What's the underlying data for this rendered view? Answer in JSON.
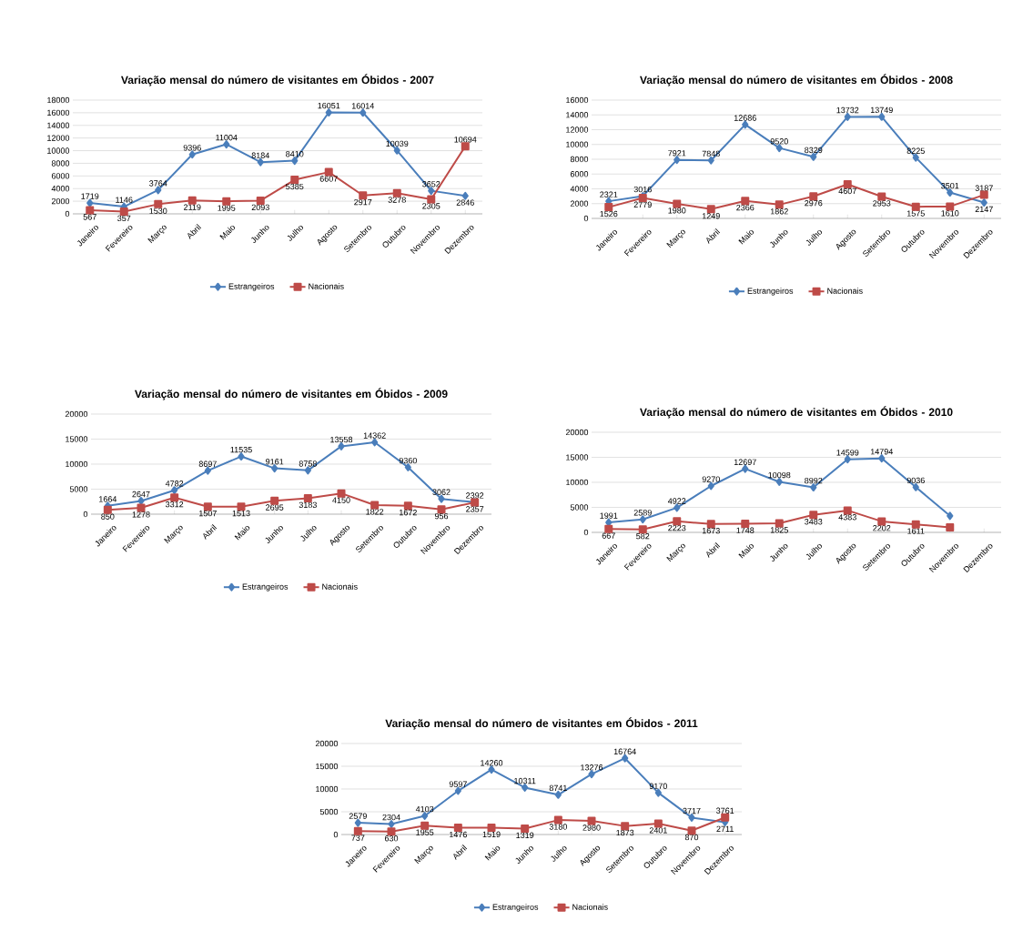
{
  "chart_data": [
    {
      "type": "line",
      "title": "Variação mensal do número de visitantes em Óbidos - 2007",
      "categories": [
        "Janeiro",
        "Fevereiro",
        "Março",
        "Abril",
        "Maio",
        "Junho",
        "Julho",
        "Agosto",
        "Setembro",
        "Outubro",
        "Novembro",
        "Dezembro"
      ],
      "series": [
        {
          "name": "Estrangeiros",
          "color": "#4a7ebb",
          "marker": "diamond",
          "values": [
            1719,
            1146,
            3764,
            9396,
            11004,
            8184,
            8410,
            16051,
            16014,
            10039,
            3652,
            2846
          ]
        },
        {
          "name": "Nacionais",
          "color": "#be4b48",
          "marker": "square",
          "values": [
            567,
            357,
            1530,
            2119,
            1995,
            2093,
            5385,
            6607,
            2917,
            3278,
            2305,
            10694
          ]
        }
      ],
      "ylim": [
        0,
        18000
      ],
      "yticks": [
        0,
        2000,
        4000,
        6000,
        8000,
        10000,
        12000,
        14000,
        16000,
        18000
      ],
      "grid": "y",
      "legend": "bottom",
      "data_labels": true
    },
    {
      "type": "line",
      "title": "Variação mensal do número de visitantes em Óbidos - 2008",
      "categories": [
        "Janeiro",
        "Fevereiro",
        "Março",
        "Abril",
        "Maio",
        "Junho",
        "Julho",
        "Agosto",
        "Setembro",
        "Outubro",
        "Novembro",
        "Dezembro"
      ],
      "series": [
        {
          "name": "Estrangeiros",
          "color": "#4a7ebb",
          "marker": "diamond",
          "values": [
            2321,
            3016,
            7921,
            7848,
            12686,
            9520,
            8329,
            13732,
            13749,
            8225,
            3501,
            2147
          ]
        },
        {
          "name": "Nacionais",
          "color": "#be4b48",
          "marker": "square",
          "values": [
            1526,
            2779,
            1980,
            1249,
            2366,
            1862,
            2976,
            4607,
            2953,
            1575,
            1610,
            3187
          ]
        }
      ],
      "ylim": [
        0,
        16000
      ],
      "yticks": [
        0,
        2000,
        4000,
        6000,
        8000,
        10000,
        12000,
        14000,
        16000
      ],
      "grid": "y",
      "legend": "bottom",
      "data_labels": true
    },
    {
      "type": "line",
      "title": "Variação mensal do número de visitantes em Óbidos - 2009",
      "categories": [
        "Janeiro",
        "Fevereiro",
        "Março",
        "Abril",
        "Maio",
        "Junho",
        "Julho",
        "Agosto",
        "Setembro",
        "Outubro",
        "Novembro",
        "Dezembro"
      ],
      "series": [
        {
          "name": "Estrangeiros",
          "color": "#4a7ebb",
          "marker": "diamond",
          "values": [
            1664,
            2647,
            4782,
            8697,
            11535,
            9161,
            8758,
            13558,
            14362,
            9360,
            3062,
            2392
          ]
        },
        {
          "name": "Nacionais",
          "color": "#be4b48",
          "marker": "square",
          "values": [
            850,
            1278,
            3312,
            1507,
            1513,
            2695,
            3183,
            4150,
            1822,
            1672,
            956,
            2357
          ]
        }
      ],
      "ylim": [
        0,
        20000
      ],
      "yticks": [
        0,
        5000,
        10000,
        15000,
        20000
      ],
      "grid": "y",
      "legend": "bottom",
      "data_labels": true
    },
    {
      "type": "line",
      "title": "Variação mensal do número de visitantes em Óbidos - 2010",
      "categories": [
        "Janeiro",
        "Fevereiro",
        "Março",
        "Abril",
        "Maio",
        "Junho",
        "Julho",
        "Agosto",
        "Setembro",
        "Outubro",
        "Novembro",
        "Dezembro"
      ],
      "series": [
        {
          "color": "#4a7ebb",
          "marker": "diamond",
          "values": [
            1991,
            2589,
            4922,
            9270,
            12697,
            10098,
            8992,
            14599,
            14794,
            9036,
            3300,
            null
          ],
          "value_labels": [
            "1991",
            "2589",
            "4922",
            "9270",
            "12697",
            "10098",
            "8992",
            "14599",
            "14794",
            "9036",
            null,
            null
          ]
        },
        {
          "color": "#be4b48",
          "marker": "square",
          "values": [
            667,
            582,
            2223,
            1673,
            1748,
            1825,
            3483,
            4383,
            2202,
            1611,
            1000,
            null
          ],
          "value_labels": [
            "667",
            "582",
            "2223",
            "1673",
            "1748",
            "1825",
            "3483",
            "4383",
            "2202",
            "1611",
            null,
            null
          ]
        }
      ],
      "ylim": [
        0,
        20000
      ],
      "yticks": [
        0,
        5000,
        10000,
        15000,
        20000
      ],
      "grid": "y"
    },
    {
      "type": "line",
      "title": "Variação mensal do número de visitantes em Óbidos - 2011",
      "categories": [
        "Janeiro",
        "Fevereiro",
        "Março",
        "Abril",
        "Maio",
        "Junho",
        "Julho",
        "Agosto",
        "Setembro",
        "Outubro",
        "Novembro",
        "Dezembro"
      ],
      "series": [
        {
          "name": "Estrangeiros",
          "color": "#4a7ebb",
          "marker": "diamond",
          "values": [
            2579,
            2304,
            4103,
            9597,
            14260,
            10311,
            8741,
            13276,
            16764,
            9170,
            3717,
            2711
          ]
        },
        {
          "name": "Nacionais",
          "color": "#be4b48",
          "marker": "square",
          "values": [
            737,
            630,
            1955,
            1476,
            1519,
            1319,
            3180,
            2980,
            1873,
            2401,
            870,
            3761
          ]
        }
      ],
      "ylim": [
        0,
        20000
      ],
      "yticks": [
        0,
        5000,
        10000,
        15000,
        20000
      ],
      "grid": "y",
      "legend": "bottom",
      "data_labels": true
    }
  ]
}
